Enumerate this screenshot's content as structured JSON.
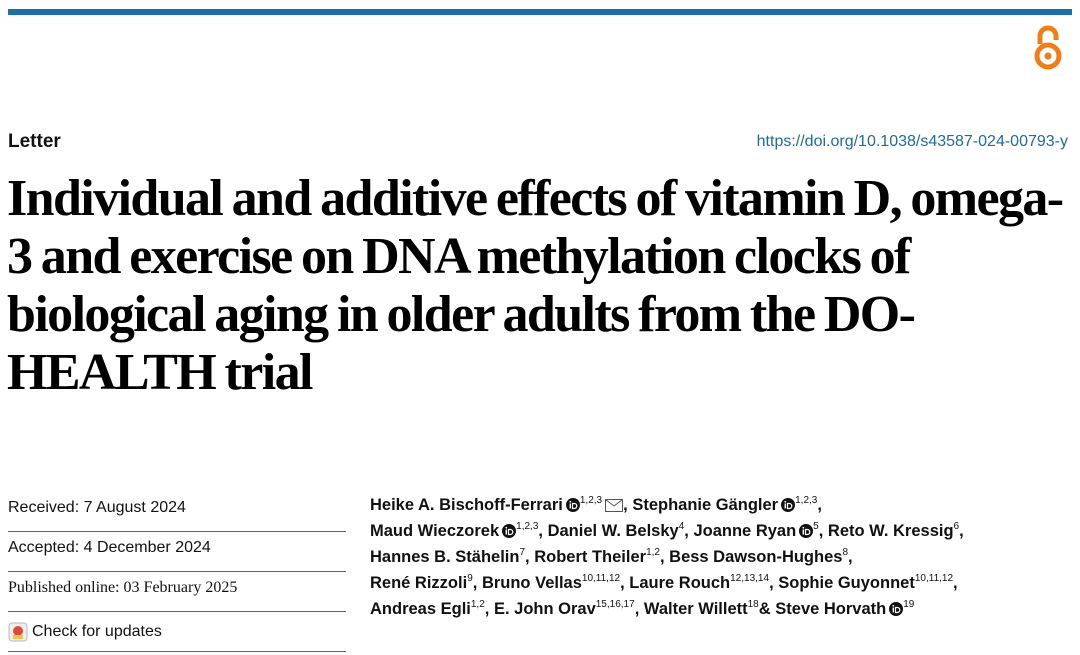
{
  "header": {
    "kind": "Letter",
    "doi": "https://doi.org/10.1038/s43587-024-00793-y",
    "title": "Individual and additive effects of vitamin D, omega-3 and exercise on DNA methylation clocks of biological aging in older adults from the DO-HEALTH trial"
  },
  "dates": {
    "received": "Received: 7 August 2024",
    "accepted": "Accepted: 4 December 2024",
    "published": "Published online: 03 February 2025",
    "check": "Check for updates"
  },
  "authors": [
    {
      "name": "Heike A. Bischoff-Ferrari",
      "orcid": true,
      "affil": "1,2,3",
      "email": true,
      "sep": ","
    },
    {
      "name": "Stephanie Gängler",
      "orcid": true,
      "affil": "1,2,3",
      "sep": ","
    },
    {
      "name": "Maud Wieczorek",
      "orcid": true,
      "affil": "1,2,3",
      "sep": ","
    },
    {
      "name": "Daniel W. Belsky",
      "affil": "4",
      "sep": ","
    },
    {
      "name": "Joanne Ryan",
      "orcid": true,
      "affil": "5",
      "sep": ","
    },
    {
      "name": "Reto W. Kressig",
      "affil": "6",
      "sep": ","
    },
    {
      "name": "Hannes B. Stähelin",
      "affil": "7",
      "sep": ","
    },
    {
      "name": "Robert Theiler",
      "affil": "1,2",
      "sep": ","
    },
    {
      "name": "Bess Dawson-Hughes",
      "affil": "8",
      "sep": ","
    },
    {
      "name": "René Rizzoli",
      "affil": "9",
      "sep": ","
    },
    {
      "name": "Bruno Vellas",
      "affil": "10,11,12",
      "sep": ","
    },
    {
      "name": "Laure Rouch",
      "affil": "12,13,14",
      "sep": ","
    },
    {
      "name": "Sophie Guyonnet",
      "affil": "10,11,12",
      "sep": ","
    },
    {
      "name": "Andreas Egli",
      "affil": "1,2",
      "sep": ","
    },
    {
      "name": "E. John Orav",
      "affil": "15,16,17",
      "sep": ","
    },
    {
      "name": "Walter Willett",
      "affil": "18",
      "sep": "&"
    },
    {
      "name": "Steve Horvath",
      "orcid": true,
      "affil": "19"
    }
  ]
}
